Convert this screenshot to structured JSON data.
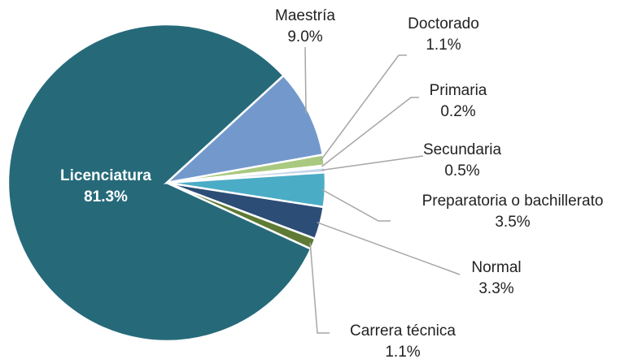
{
  "chart_data": {
    "type": "pie",
    "categories": [
      "Licenciatura",
      "Maestría",
      "Doctorado",
      "Primaria",
      "Secundaria",
      "Preparatoria o bachillerato",
      "Normal",
      "Carrera técnica"
    ],
    "values": [
      81.3,
      9.0,
      1.1,
      0.2,
      0.5,
      3.5,
      3.3,
      1.1
    ],
    "value_labels": [
      "81.3%",
      "9.0%",
      "1.1%",
      "0.2%",
      "0.5%",
      "3.5%",
      "3.3%",
      "1.1%"
    ],
    "colors": [
      "#266a7a",
      "#7399cc",
      "#a8c97f",
      "#dbe7c4",
      "#c5d6ea",
      "#4bacc6",
      "#2c4d75",
      "#5e7a34"
    ]
  }
}
